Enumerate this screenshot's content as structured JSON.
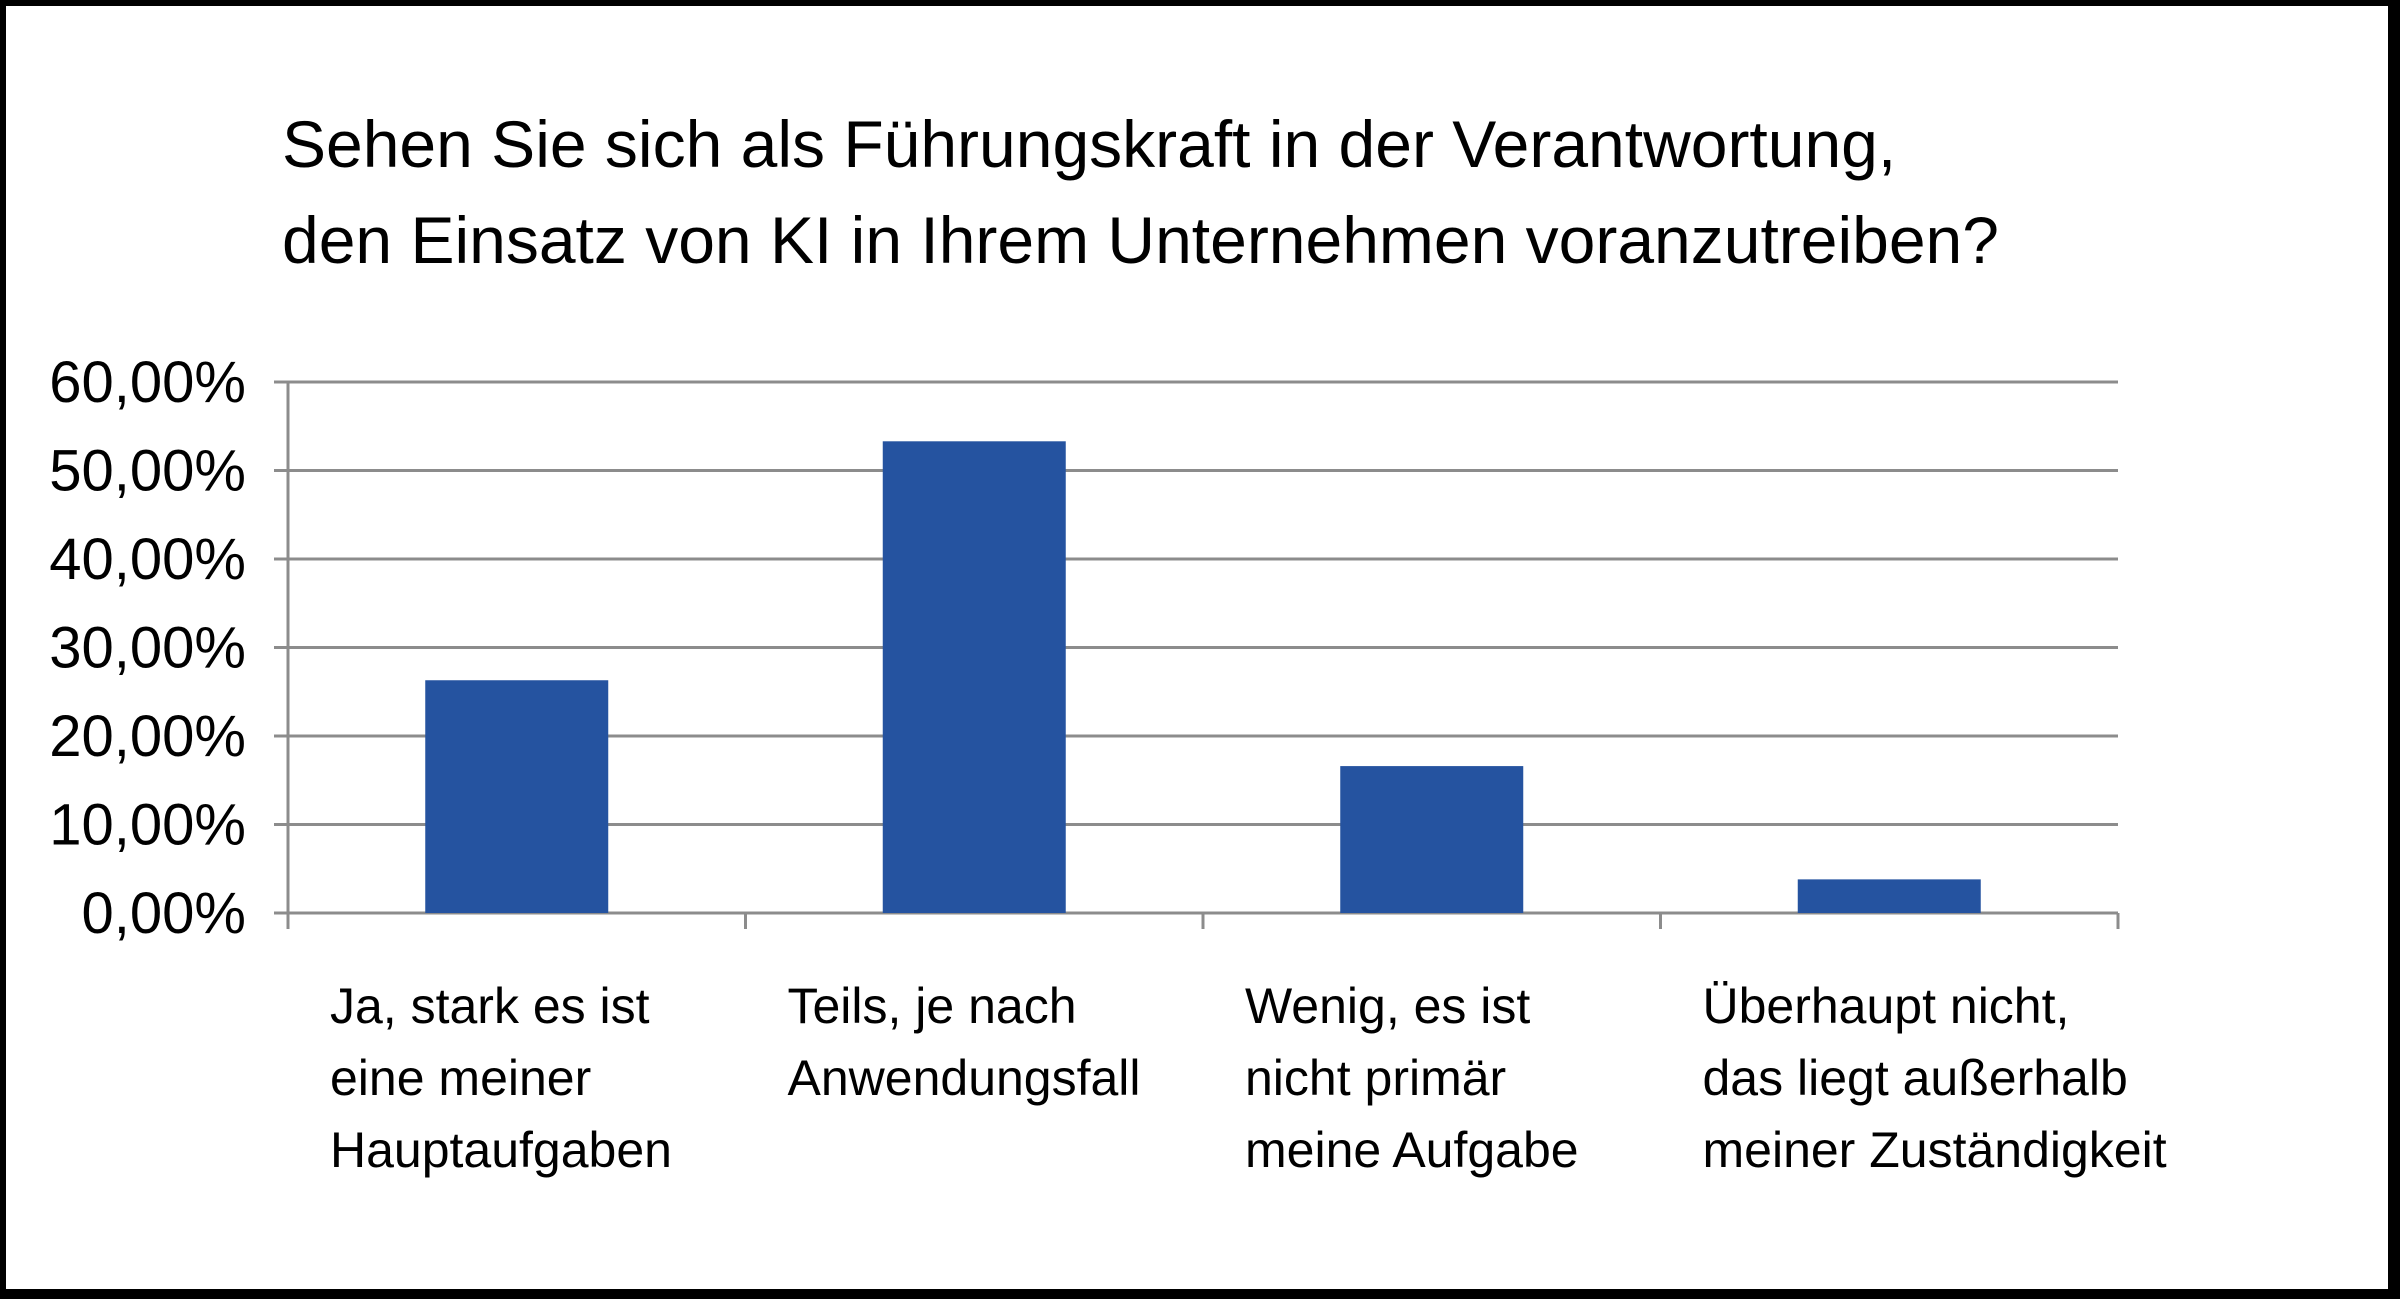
{
  "chart_data": {
    "type": "bar",
    "title_lines": [
      "Sehen Sie sich als Führungskraft in der Verantwortung,",
      "den Einsatz von KI in Ihrem Unternehmen voranzutreiben?"
    ],
    "categories": [
      [
        "Ja, stark es ist",
        "eine meiner",
        "Hauptaufgaben"
      ],
      [
        "Teils, je nach",
        "Anwendungsfall"
      ],
      [
        "Wenig, es ist",
        "nicht primär",
        "meine Aufgabe"
      ],
      [
        "Überhaupt nicht,",
        "das liegt außerhalb",
        "meiner Zuständigkeit"
      ]
    ],
    "values": [
      26.3,
      53.3,
      16.6,
      3.8
    ],
    "ylim": [
      0,
      60
    ],
    "yticks": [
      "0,00%",
      "10,00%",
      "20,00%",
      "30,00%",
      "40,00%",
      "50,00%",
      "60,00%"
    ],
    "ytick_values": [
      0,
      10,
      20,
      30,
      40,
      50,
      60
    ],
    "grid": true,
    "bar_color": "#2553a0",
    "grid_color": "#8c8c8c"
  }
}
